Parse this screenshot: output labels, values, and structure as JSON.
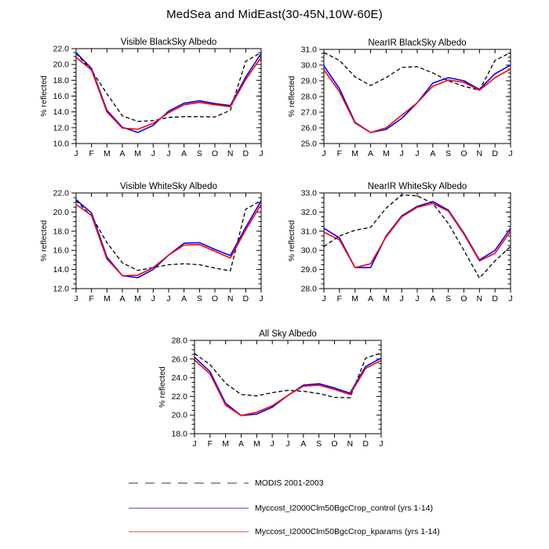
{
  "title": "MedSea and MidEast(30-45N,10W-60E)",
  "ylabel": "% reflected",
  "months": [
    "J",
    "F",
    "M",
    "A",
    "M",
    "J",
    "J",
    "A",
    "S",
    "O",
    "N",
    "D",
    "J"
  ],
  "series_meta": [
    {
      "id": "modis",
      "name": "MODIS 2001-2003",
      "color": "#000000",
      "dash": "5,3",
      "width": 1.3
    },
    {
      "id": "control",
      "name": "Myccost_I2000Clm50BgcCrop_control (yrs 1-14)",
      "color": "#0000ff",
      "dash": "",
      "width": 1.6
    },
    {
      "id": "kparams",
      "name": "Myccost_I2000Clm50BgcCrop_kparams (yrs 1-14)",
      "color": "#ff0000",
      "dash": "",
      "width": 1.6
    }
  ],
  "chart_data": [
    {
      "type": "line",
      "title": "Visible BlackSky Albedo",
      "categories": [
        "J",
        "F",
        "M",
        "A",
        "M",
        "J",
        "J",
        "A",
        "S",
        "O",
        "N",
        "D",
        "J"
      ],
      "ylabel": "% reflected",
      "ylim": [
        10.0,
        22.0
      ],
      "ytick_major": 2.0,
      "ytick_minor": 0.5,
      "series": [
        {
          "name": "MODIS 2001-2003",
          "values": [
            21.4,
            19.25,
            16.3,
            13.5,
            12.8,
            12.9,
            13.3,
            13.4,
            13.4,
            13.35,
            14.2,
            20.4,
            21.5
          ]
        },
        {
          "name": "Myccost_I2000Clm50BgcCrop_control (yrs 1-14)",
          "values": [
            21.5,
            19.5,
            14.2,
            12.05,
            11.4,
            12.3,
            14.1,
            15.1,
            15.4,
            15.05,
            14.8,
            18.4,
            21.4
          ]
        },
        {
          "name": "Myccost_I2000Clm50BgcCrop_kparams (yrs 1-14)",
          "values": [
            20.9,
            19.3,
            14.0,
            11.95,
            11.8,
            12.55,
            13.9,
            14.9,
            15.2,
            14.9,
            14.65,
            18.1,
            20.9
          ]
        }
      ]
    },
    {
      "type": "line",
      "title": "NearIR BlackSky Albedo",
      "categories": [
        "J",
        "F",
        "M",
        "A",
        "M",
        "J",
        "J",
        "A",
        "S",
        "O",
        "N",
        "D",
        "J"
      ],
      "ylabel": "% reflected",
      "ylim": [
        25.0,
        31.0
      ],
      "ytick_major": 1.0,
      "ytick_minor": 0.25,
      "series": [
        {
          "name": "MODIS 2001-2003",
          "values": [
            30.8,
            30.3,
            29.25,
            28.7,
            29.2,
            29.85,
            29.9,
            29.5,
            29.0,
            28.65,
            28.4,
            30.3,
            30.8
          ]
        },
        {
          "name": "Myccost_I2000Clm50BgcCrop_control (yrs 1-14)",
          "values": [
            29.95,
            28.5,
            26.35,
            25.7,
            25.9,
            26.6,
            27.6,
            28.85,
            29.2,
            29.0,
            28.45,
            29.45,
            30.0
          ]
        },
        {
          "name": "Myccost_I2000Clm50BgcCrop_kparams (yrs 1-14)",
          "values": [
            29.7,
            28.3,
            26.3,
            25.7,
            26.0,
            26.8,
            27.6,
            28.65,
            29.05,
            28.9,
            28.4,
            29.2,
            29.75
          ]
        }
      ]
    },
    {
      "type": "line",
      "title": "Visible WhiteSky Albedo",
      "categories": [
        "J",
        "F",
        "M",
        "A",
        "M",
        "J",
        "J",
        "A",
        "S",
        "O",
        "N",
        "D",
        "J"
      ],
      "ylabel": "% reflected",
      "ylim": [
        12.0,
        22.0
      ],
      "ytick_major": 2.0,
      "ytick_minor": 0.5,
      "series": [
        {
          "name": "MODIS 2001-2003",
          "values": [
            21.2,
            19.6,
            16.8,
            14.7,
            13.9,
            14.2,
            14.5,
            14.6,
            14.5,
            14.15,
            13.85,
            20.3,
            21.2
          ]
        },
        {
          "name": "Myccost_I2000Clm50BgcCrop_control (yrs 1-14)",
          "values": [
            21.3,
            19.9,
            15.3,
            13.35,
            13.15,
            14.0,
            15.5,
            16.75,
            16.8,
            16.1,
            15.45,
            18.4,
            21.2
          ]
        },
        {
          "name": "Myccost_I2000Clm50BgcCrop_kparams (yrs 1-14)",
          "values": [
            20.8,
            19.65,
            15.1,
            13.35,
            13.4,
            14.2,
            15.5,
            16.55,
            16.6,
            15.9,
            15.2,
            18.15,
            20.8
          ]
        }
      ]
    },
    {
      "type": "line",
      "title": "NearIR WhiteSky Albedo",
      "categories": [
        "J",
        "F",
        "M",
        "A",
        "M",
        "J",
        "J",
        "A",
        "S",
        "O",
        "N",
        "D",
        "J"
      ],
      "ylabel": "% reflected",
      "ylim": [
        28.0,
        33.0
      ],
      "ytick_major": 1.0,
      "ytick_minor": 0.25,
      "series": [
        {
          "name": "MODIS 2001-2003",
          "values": [
            30.2,
            30.75,
            31.05,
            31.2,
            32.2,
            32.9,
            32.85,
            32.45,
            31.4,
            30.0,
            28.55,
            29.45,
            30.2
          ]
        },
        {
          "name": "Myccost_I2000Clm50BgcCrop_control (yrs 1-14)",
          "values": [
            31.15,
            30.65,
            29.1,
            29.1,
            30.75,
            31.8,
            32.3,
            32.55,
            32.1,
            30.9,
            29.5,
            30.0,
            31.15
          ]
        },
        {
          "name": "Myccost_I2000Clm50BgcCrop_kparams (yrs 1-14)",
          "values": [
            30.95,
            30.55,
            29.1,
            29.3,
            30.7,
            31.75,
            32.25,
            32.45,
            32.05,
            30.85,
            29.45,
            29.85,
            31.0
          ]
        }
      ]
    },
    {
      "type": "line",
      "title": "All Sky Albedo",
      "categories": [
        "J",
        "F",
        "M",
        "A",
        "M",
        "J",
        "J",
        "A",
        "S",
        "O",
        "N",
        "D",
        "J"
      ],
      "ylabel": "% reflected",
      "ylim": [
        18.0,
        28.0
      ],
      "ytick_major": 2.0,
      "ytick_minor": 0.5,
      "series": [
        {
          "name": "MODIS 2001-2003",
          "values": [
            26.6,
            25.4,
            23.4,
            22.2,
            22.05,
            22.4,
            22.65,
            22.55,
            22.3,
            21.9,
            21.85,
            26.1,
            26.65
          ]
        },
        {
          "name": "Myccost_I2000Clm50BgcCrop_control (yrs 1-14)",
          "values": [
            26.2,
            24.65,
            21.25,
            19.95,
            20.1,
            20.85,
            22.1,
            23.2,
            23.35,
            22.9,
            22.35,
            25.2,
            26.1
          ]
        },
        {
          "name": "Myccost_I2000Clm50BgcCrop_kparams (yrs 1-14)",
          "values": [
            25.9,
            24.4,
            21.05,
            19.95,
            20.3,
            21.0,
            22.1,
            23.1,
            23.2,
            22.75,
            22.2,
            25.0,
            25.85
          ]
        }
      ]
    }
  ],
  "legend": {
    "items": [
      {
        "label": "MODIS 2001-2003",
        "color": "#999999",
        "dash": "12,9",
        "width": 2
      },
      {
        "label": "Myccost_I2000Clm50BgcCrop_control (yrs 1-14)",
        "color": "#7b7bd8",
        "dash": "",
        "width": 1.4
      },
      {
        "label": "Myccost_I2000Clm50BgcCrop_kparams (yrs 1-14)",
        "color": "#f5a0a0",
        "dash": "",
        "width": 2
      }
    ]
  }
}
